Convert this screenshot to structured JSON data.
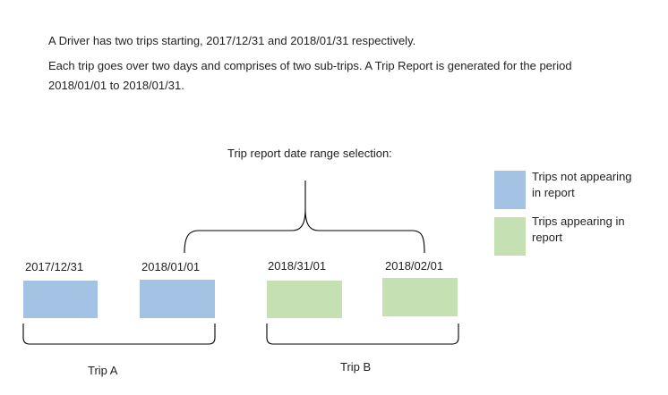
{
  "intro": {
    "line1": "A Driver has two trips starting, 2017/12/31 and 2018/01/31 respectively.",
    "line2": "Each trip goes over two days and comprises of two sub-trips. A Trip Report is generated for the period",
    "line3": "2018/01/01 to 2018/01/31."
  },
  "selection_label": "Trip report date range selection:",
  "legend": {
    "not_in_report": {
      "label": "Trips not appearing\n in report",
      "color": "#a4c2e4"
    },
    "in_report": {
      "label": "Trips appearing in\n report",
      "color": "#c5e0b3"
    }
  },
  "subtrips": [
    {
      "date": "2017/12/31",
      "in_report": false
    },
    {
      "date": "2018/01/01",
      "in_report": false
    },
    {
      "date": "2018/31/01",
      "in_report": true
    },
    {
      "date": "2018/02/01",
      "in_report": true
    }
  ],
  "trips": [
    {
      "label": "Trip A"
    },
    {
      "label": "Trip B"
    }
  ]
}
